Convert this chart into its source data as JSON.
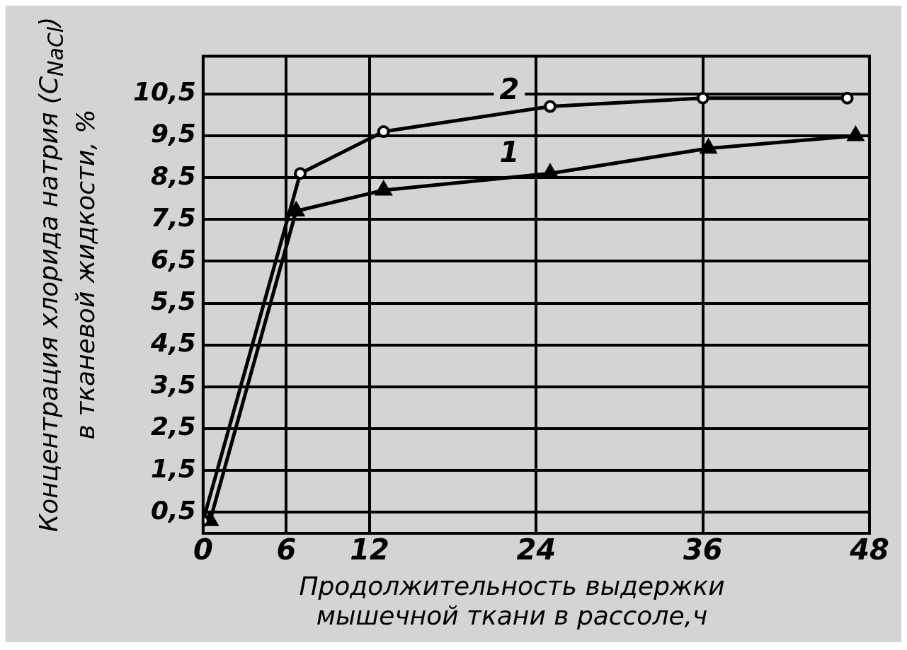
{
  "chart_data": {
    "type": "line",
    "xlabel": "Продолжительность выдержки мышечной ткани в рассоле,ч",
    "ylabel": "Концентрация хлорида натрия (C$_{NaCl}$) в тканевой жидкости, %",
    "xlim": [
      0,
      48
    ],
    "xticks": [
      0,
      6,
      12,
      24,
      36,
      48
    ],
    "ylim": [
      0,
      11.4
    ],
    "yticks": [
      {
        "value": 0.5,
        "label": "0,5"
      },
      {
        "value": 1.5,
        "label": "1,5"
      },
      {
        "value": 2.5,
        "label": "2,5"
      },
      {
        "value": 3.5,
        "label": "3,5"
      },
      {
        "value": 4.5,
        "label": "4,5"
      },
      {
        "value": 5.5,
        "label": "5,5"
      },
      {
        "value": 6.5,
        "label": "6,5"
      },
      {
        "value": 7.5,
        "label": "7,5"
      },
      {
        "value": 8.5,
        "label": "8,5"
      },
      {
        "value": 9.5,
        "label": "9,5"
      },
      {
        "value": 10.5,
        "label": "10,5"
      }
    ],
    "grid": true,
    "line_style": "solid",
    "series": [
      {
        "name": "1",
        "color": "#000000",
        "marker": "triangle",
        "x": [
          0.5,
          6.7,
          13,
          25,
          36.4,
          47
        ],
        "values": [
          0.3,
          7.7,
          8.2,
          8.6,
          9.2,
          9.5
        ]
      },
      {
        "name": "2",
        "color": "#000000",
        "marker": "circle",
        "x": [
          0,
          7,
          13,
          25,
          36,
          46.4
        ],
        "values": [
          0.3,
          8.6,
          9.6,
          10.2,
          10.4,
          10.4
        ]
      }
    ]
  }
}
